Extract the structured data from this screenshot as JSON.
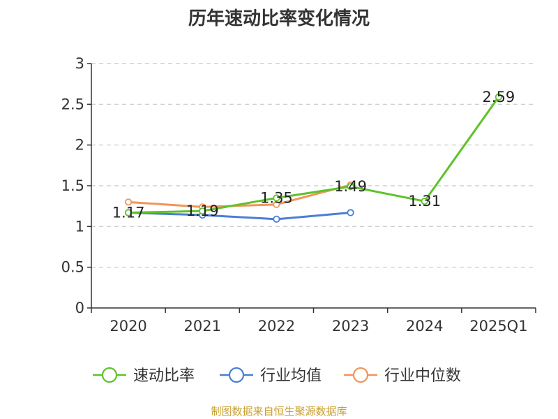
{
  "chart_data": {
    "type": "line",
    "title": "历年速动比率变化情况",
    "categories": [
      "2020",
      "2021",
      "2022",
      "2023",
      "2024",
      "2025Q1"
    ],
    "ylim": [
      0,
      3
    ],
    "yticks": [
      "0",
      "0.5",
      "1",
      "1.5",
      "2",
      "2.5",
      "3"
    ],
    "grid": true,
    "legend_position": "bottom",
    "series": [
      {
        "name": "速动比率",
        "color": "#5ec22a",
        "values": [
          1.17,
          1.19,
          1.35,
          1.49,
          1.31,
          2.59
        ],
        "labels": [
          "1.17",
          "1.19",
          "1.35",
          "1.49",
          "1.31",
          "2.59"
        ]
      },
      {
        "name": "行业均值",
        "color": "#4a7fd4",
        "values": [
          1.17,
          1.14,
          1.09,
          1.17,
          null,
          null
        ]
      },
      {
        "name": "行业中位数",
        "color": "#f0955a",
        "values": [
          1.3,
          1.24,
          1.27,
          1.51,
          null,
          null
        ]
      }
    ]
  },
  "footer": {
    "source": "制图数据来自恒生聚源数据库"
  }
}
